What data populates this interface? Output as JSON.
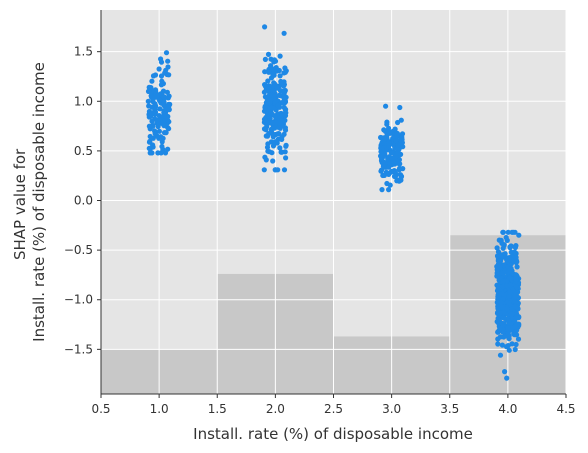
{
  "chart_data": {
    "type": "scatter",
    "xlabel": "Install. rate (%) of disposable income",
    "ylabel_lines": [
      "SHAP value for",
      "Install. rate (%) of disposable income"
    ],
    "xlim": [
      0.5,
      4.5
    ],
    "ylim": [
      -1.95,
      1.92
    ],
    "x_ticks": [
      0.5,
      1.0,
      1.5,
      2.0,
      2.5,
      3.0,
      3.5,
      4.0,
      4.5
    ],
    "x_tick_labels": [
      "0.5",
      "1.0",
      "1.5",
      "2.0",
      "2.5",
      "3.0",
      "3.5",
      "4.0",
      "4.5"
    ],
    "y_ticks": [
      -1.5,
      -1.0,
      -0.5,
      0.0,
      0.5,
      1.0,
      1.5
    ],
    "y_tick_labels": [
      "−1.5",
      "−1.0",
      "−0.5",
      "0.0",
      "0.5",
      "1.0",
      "1.5"
    ],
    "grid": true,
    "background_color": "#e5e5e5",
    "point_color": "#1e88e5",
    "histogram_color": "#c8c8c8",
    "histogram": [
      {
        "x0": 0.5,
        "x1": 1.5,
        "top": -1.5
      },
      {
        "x0": 1.5,
        "x1": 2.5,
        "top": -0.74
      },
      {
        "x0": 2.5,
        "x1": 3.5,
        "top": -1.37
      },
      {
        "x0": 3.5,
        "x1": 4.5,
        "top": -0.35
      }
    ],
    "series": [
      {
        "x": 1.0,
        "count": 135,
        "min": 0.48,
        "max": 1.49,
        "mean": 0.93,
        "sd": 0.22
      },
      {
        "x": 2.0,
        "count": 230,
        "min": 0.31,
        "max": 1.75,
        "mean": 0.95,
        "sd": 0.27
      },
      {
        "x": 3.0,
        "count": 160,
        "min": 0.11,
        "max": 0.95,
        "mean": 0.47,
        "sd": 0.15
      },
      {
        "x": 4.0,
        "count": 475,
        "min": -1.79,
        "max": -0.32,
        "mean": -0.94,
        "sd": 0.25
      }
    ]
  }
}
